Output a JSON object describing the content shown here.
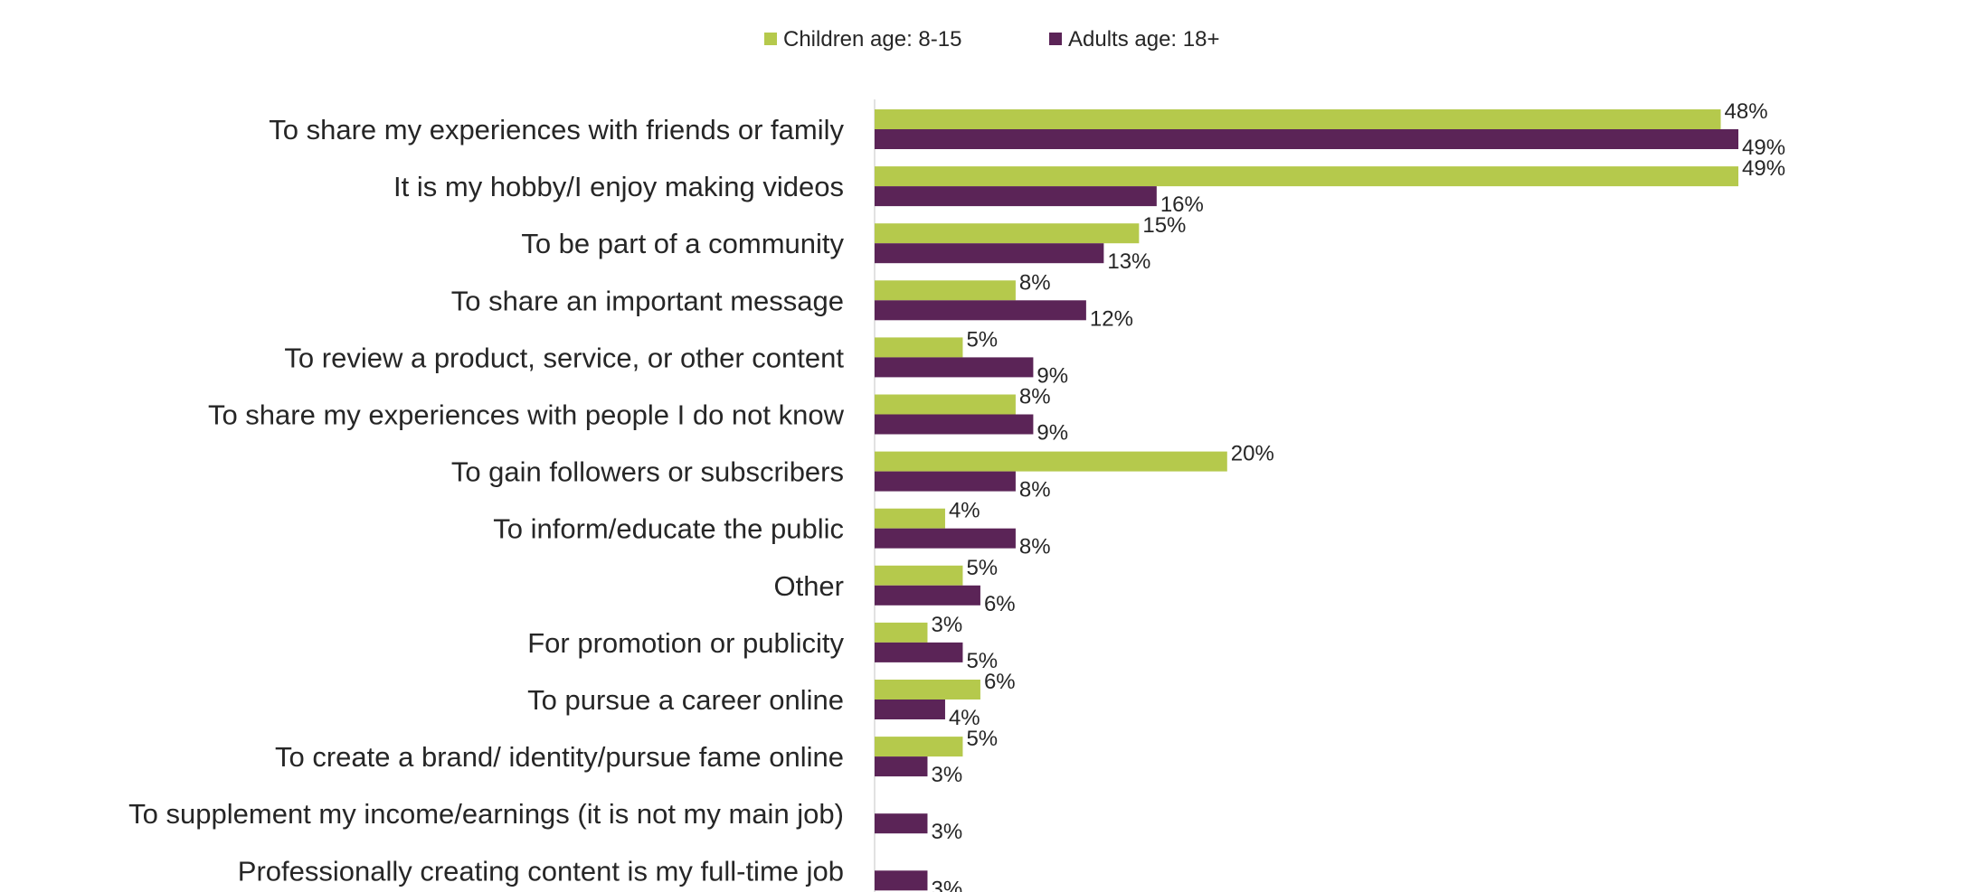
{
  "chart_data": {
    "type": "bar",
    "orientation": "horizontal",
    "unit": "%",
    "legend_position": "top-center",
    "grid": false,
    "xlim": [
      0,
      50
    ],
    "categories": [
      "To share my experiences with friends or family",
      "It is my hobby/I enjoy making videos",
      "To be part of a community",
      "To share an important message",
      "To review a product, service, or other content",
      "To share my experiences with people I do not know",
      "To gain followers or subscribers",
      "To inform/educate the public",
      "Other",
      "For promotion or publicity",
      "To pursue a career online",
      "To create a brand/ identity/pursue fame online",
      "To supplement my income/earnings (it is not my main job)",
      "Professionally creating content is my full-time job"
    ],
    "series": [
      {
        "name": "Children age: 8-15",
        "color": "#b5c94c",
        "values": [
          48,
          49,
          15,
          8,
          5,
          8,
          20,
          4,
          5,
          3,
          6,
          5,
          null,
          null
        ],
        "labels": [
          "48%",
          "49%",
          "15%",
          "8%",
          "5%",
          "8%",
          "20%",
          "4%",
          "5%",
          "3%",
          "6%",
          "5%",
          "",
          ""
        ]
      },
      {
        "name": "Adults age: 18+",
        "color": "#5b2457",
        "values": [
          49,
          16,
          13,
          12,
          9,
          9,
          8,
          8,
          6,
          5,
          4,
          3,
          3,
          3
        ],
        "labels": [
          "49%",
          "16%",
          "13%",
          "12%",
          "9%",
          "9%",
          "8%",
          "8%",
          "6%",
          "5%",
          "4%",
          "3%",
          "3%",
          "3%"
        ]
      }
    ]
  }
}
